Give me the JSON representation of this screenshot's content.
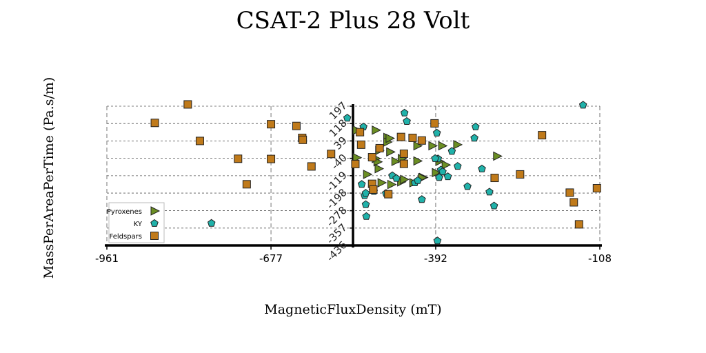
{
  "chart_data": {
    "type": "scatter",
    "title": "CSAT-2 Plus 28 Volt",
    "xlabel": "MagneticFluxDensity (mT)",
    "ylabel": "MassPerAreaPerTime (Pa.s/m)",
    "xlim": [
      -961,
      -108
    ],
    "ylim": [
      -436,
      197
    ],
    "x_ticks": [
      "-961",
      "-677",
      "-392",
      "-108"
    ],
    "y_ticks": [
      "197",
      "118",
      "39",
      "-40",
      "-119",
      "-198",
      "-278",
      "-357",
      "-436"
    ],
    "grid": "dashed",
    "legend_position": "bottom-left",
    "series": [
      {
        "name": "Pyroxenes",
        "marker": "triangle-right",
        "color": "#6b8e23",
        "points": [
          [
            -529,
            88
          ],
          [
            -529,
            -37
          ],
          [
            -511,
            -113
          ],
          [
            -496,
            88
          ],
          [
            -496,
            -41
          ],
          [
            -493,
            -56
          ],
          [
            -490,
            -4
          ],
          [
            -486,
            -151
          ],
          [
            -491,
            -87
          ],
          [
            -476,
            55
          ],
          [
            -476,
            34
          ],
          [
            -472,
            51
          ],
          [
            -471,
            -11
          ],
          [
            -469,
            -159
          ],
          [
            -462,
            -54
          ],
          [
            -452,
            -147
          ],
          [
            -451,
            -41
          ],
          [
            -447,
            -136
          ],
          [
            -431,
            -151
          ],
          [
            -424,
            -52
          ],
          [
            -424,
            17
          ],
          [
            -414,
            -127
          ],
          [
            -416,
            -128
          ],
          [
            -398,
            17
          ],
          [
            -392,
            -105
          ],
          [
            -381,
            17
          ],
          [
            -386,
            -54
          ],
          [
            -375,
            -70
          ],
          [
            -355,
            22
          ],
          [
            -286,
            -30
          ]
        ]
      },
      {
        "name": "KY",
        "marker": "pentagon",
        "color": "#20b2aa",
        "points": [
          [
            -780,
            -335
          ],
          [
            -545,
            143
          ],
          [
            -517,
            103
          ],
          [
            -520,
            -158
          ],
          [
            -513,
            -250
          ],
          [
            -515,
            -209
          ],
          [
            -513,
            -198
          ],
          [
            -512,
            -304
          ],
          [
            -499,
            -190
          ],
          [
            -501,
            -185
          ],
          [
            -478,
            -199
          ],
          [
            -467,
            -119
          ],
          [
            -460,
            -131
          ],
          [
            -442,
            128
          ],
          [
            -446,
            166
          ],
          [
            -428,
            -151
          ],
          [
            -423,
            -141
          ],
          [
            -416,
            -227
          ],
          [
            -388,
            -42
          ],
          [
            -393,
            -41
          ],
          [
            -383,
            -93
          ],
          [
            -380,
            -101
          ],
          [
            -390,
            75
          ],
          [
            -386,
            -127
          ],
          [
            -371,
            -123
          ],
          [
            -364,
            -8
          ],
          [
            -354,
            -76
          ],
          [
            -337,
            -168
          ],
          [
            -325,
            52
          ],
          [
            -323,
            103
          ],
          [
            -312,
            -88
          ],
          [
            -299,
            -193
          ],
          [
            -291,
            -256
          ],
          [
            -137,
            202
          ],
          [
            -389,
            -415
          ]
        ]
      },
      {
        "name": "Feldspars",
        "marker": "square",
        "color": "#c07a1a",
        "points": [
          [
            -821,
            205
          ],
          [
            -878,
            121
          ],
          [
            -800,
            39
          ],
          [
            -734,
            -42
          ],
          [
            -719,
            -158
          ],
          [
            -677,
            -43
          ],
          [
            -677,
            115
          ],
          [
            -633,
            107
          ],
          [
            -623,
            53
          ],
          [
            -622,
            44
          ],
          [
            -607,
            -77
          ],
          [
            -573,
            -20
          ],
          [
            -531,
            -66
          ],
          [
            -523,
            79
          ],
          [
            -521,
            22
          ],
          [
            -502,
            -35
          ],
          [
            -502,
            -156
          ],
          [
            -500,
            -182
          ],
          [
            -489,
            6
          ],
          [
            -474,
            -203
          ],
          [
            -452,
            57
          ],
          [
            -447,
            -19
          ],
          [
            -447,
            -65
          ],
          [
            -432,
            53
          ],
          [
            -416,
            41
          ],
          [
            -394,
            119
          ],
          [
            -290,
            -129
          ],
          [
            -246,
            -113
          ],
          [
            -208,
            65
          ],
          [
            -160,
            -196
          ],
          [
            -153,
            -240
          ],
          [
            -144,
            -340
          ],
          [
            -113,
            -176
          ]
        ]
      }
    ]
  }
}
